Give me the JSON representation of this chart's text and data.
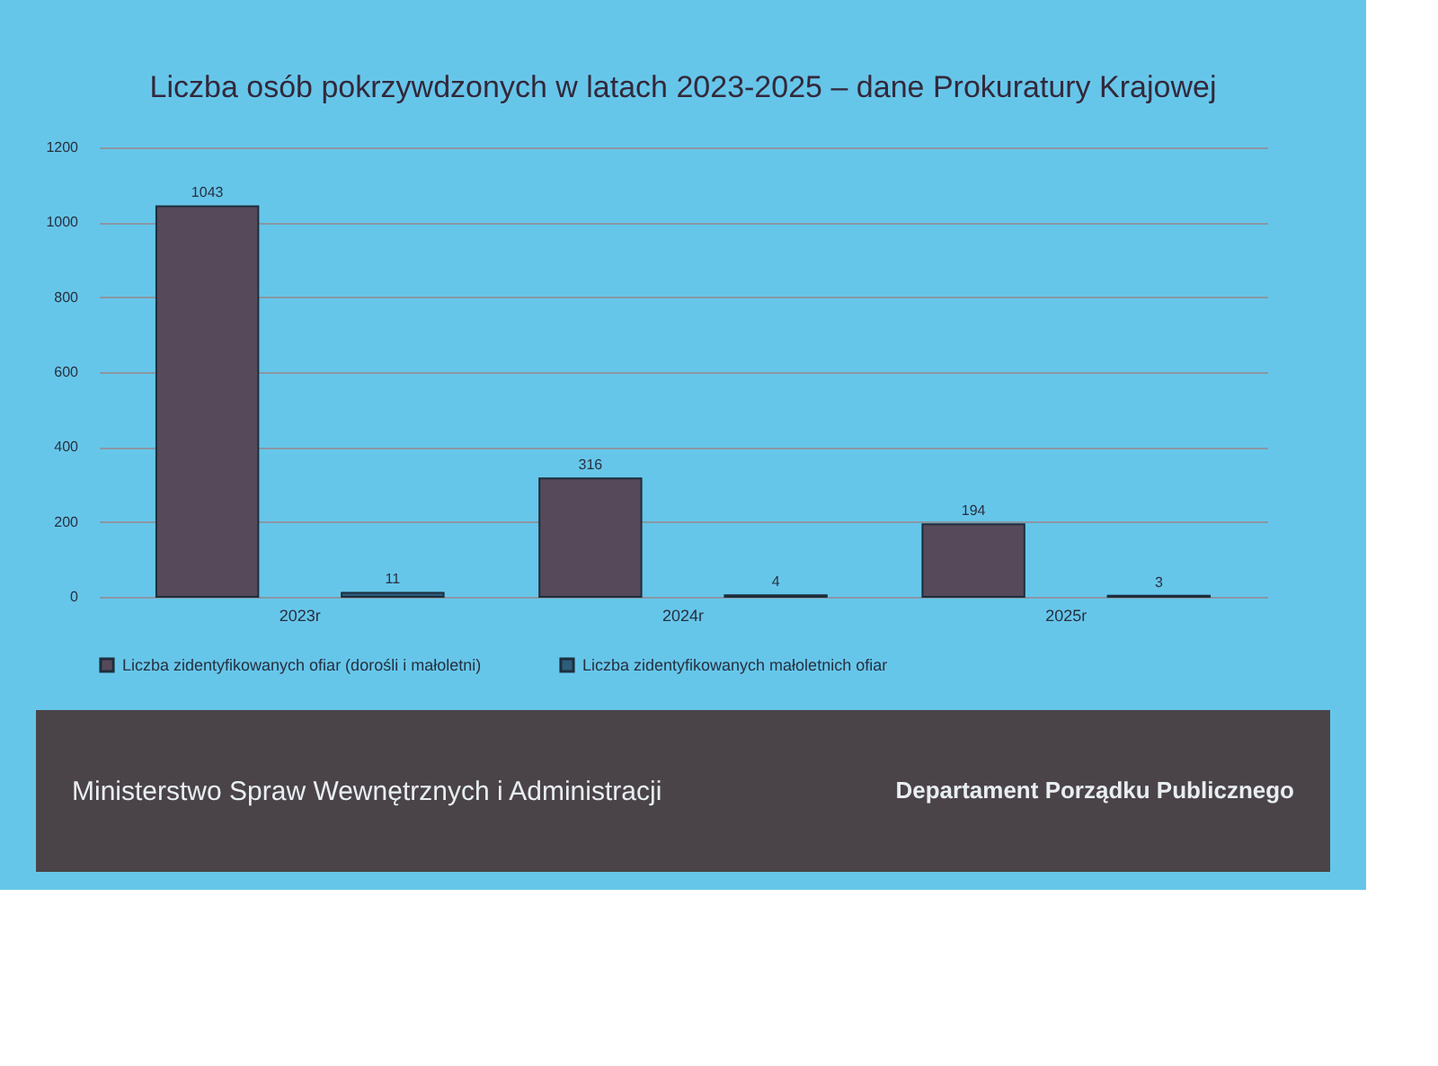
{
  "chart_data": {
    "type": "bar",
    "title": "Liczba osób pokrzywdzonych w latach 2023-2025 – dane Prokuratury Krajowej",
    "categories": [
      "2023r",
      "2024r",
      "2025r"
    ],
    "series": [
      {
        "name": "Liczba zidentyfikowanych ofiar (dorośli i małoletni)",
        "color": "#56495a",
        "values": [
          1043,
          316,
          194
        ]
      },
      {
        "name": "Liczba zidentyfikowanych małoletnich ofiar",
        "color": "#2d5c7c",
        "values": [
          11,
          4,
          3
        ]
      }
    ],
    "ylim": [
      0,
      1200
    ],
    "yticks": [
      0,
      200,
      400,
      600,
      800,
      1000,
      1200
    ],
    "grid": "y",
    "legend": "bottom",
    "data_labels": true,
    "annotations": [
      "Ministerstwo Spraw Wewnętrznych i Administracji",
      "Departament Porządku Publicznego"
    ]
  }
}
